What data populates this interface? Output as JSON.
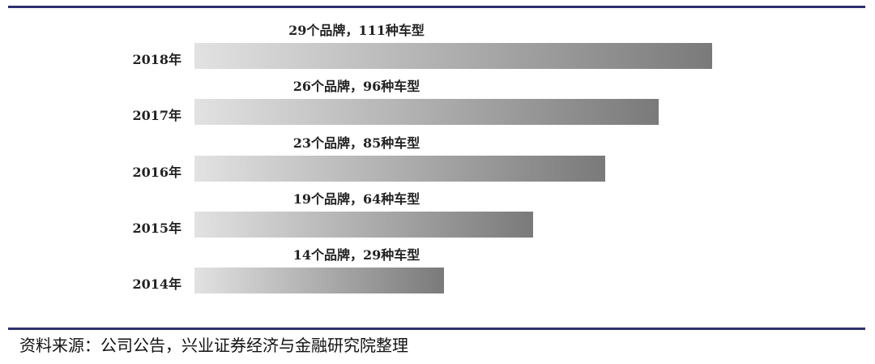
{
  "chart_data": {
    "type": "bar",
    "orientation": "horizontal",
    "categories": [
      "2018年",
      "2017年",
      "2016年",
      "2015年",
      "2014年"
    ],
    "brands": [
      29,
      26,
      23,
      19,
      14
    ],
    "models": [
      111,
      96,
      85,
      64,
      29
    ],
    "data_labels": [
      "29个品牌，111种车型",
      "26个品牌，96种车型",
      "23个品牌，85种车型",
      "19个品牌，64种车型",
      "14个品牌，29种车型"
    ],
    "bar_color": "gradient #e2e2e2 → #7a7a7a",
    "rule_color": "#2d3070",
    "grid": false
  },
  "source": "资料来源：公司公告，兴业证券经济与金融研究院整理"
}
